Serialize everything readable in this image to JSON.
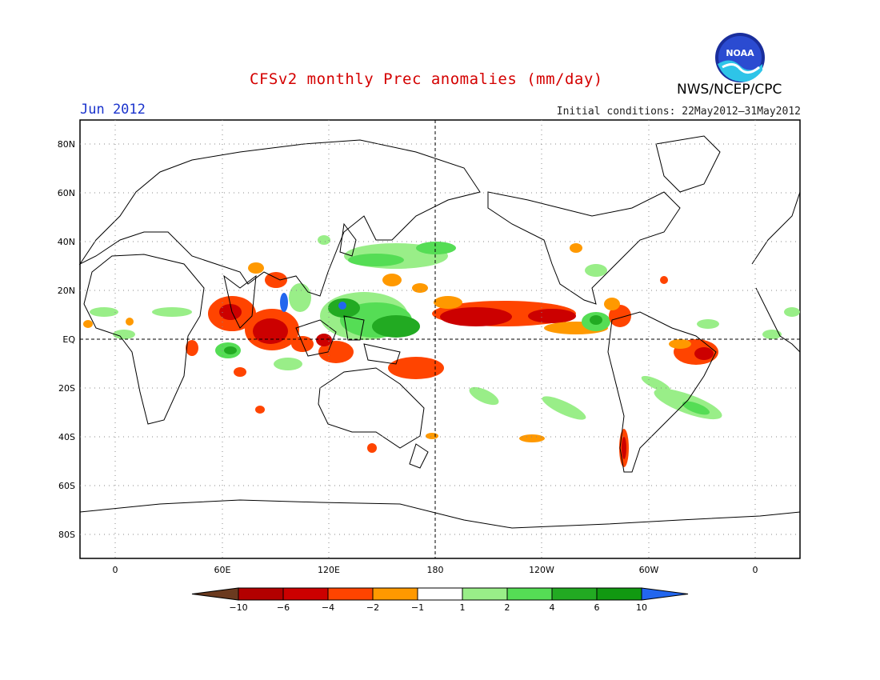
{
  "header": {
    "title": "CFSv2 monthly Prec anomalies (mm/day)",
    "month": "Jun 2012",
    "initial_conditions": "Initial conditions: 22May2012–31May2012",
    "agency": "NWS/NCEP/CPC",
    "logo_text": "NOAA"
  },
  "map": {
    "lat_labels": [
      "80N",
      "60N",
      "40N",
      "20N",
      "EQ",
      "20S",
      "40S",
      "60S",
      "80S"
    ],
    "lon_labels": [
      "0",
      "60E",
      "120E",
      "180",
      "120W",
      "60W",
      "0"
    ]
  },
  "colorbar": {
    "labels": [
      "−10",
      "−6",
      "−4",
      "−2",
      "−1",
      "1",
      "2",
      "4",
      "6",
      "10"
    ],
    "colors": [
      "#6b3a1f",
      "#b30000",
      "#cc0000",
      "#ff4400",
      "#ff9900",
      "#ffffff",
      "#99ee88",
      "#55dd55",
      "#22aa22",
      "#119911",
      "#2266ee"
    ]
  }
}
